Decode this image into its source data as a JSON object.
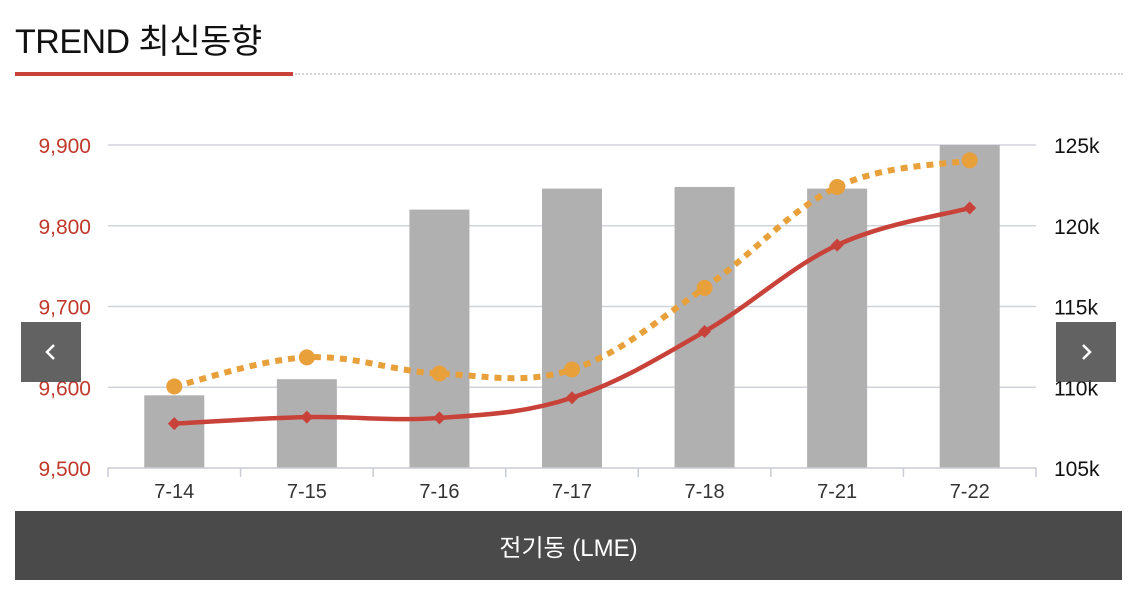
{
  "header": {
    "title": "TREND 최신동향"
  },
  "footer": {
    "label": "전기동 (LME)"
  },
  "nav": {
    "prev_icon": "chevron-left-icon",
    "next_icon": "chevron-right-icon"
  },
  "colors": {
    "accent": "#c8423a",
    "line_dotted": "#e8a03a",
    "bars": "#b0b0b0",
    "footer_bg": "#4a4a4a"
  },
  "chart_data": {
    "type": "bar",
    "categories": [
      "7-14",
      "7-15",
      "7-16",
      "7-17",
      "7-18",
      "7-21",
      "7-22"
    ],
    "series": [
      {
        "type": "bar",
        "axis": "right",
        "color": "#b0b0b0",
        "values": [
          109.5,
          110.5,
          121,
          122.3,
          122.4,
          122.3,
          125
        ]
      },
      {
        "type": "line",
        "style": "solid",
        "marker": "diamond",
        "axis": "left",
        "color": "#c8423a",
        "values": [
          9555,
          9563,
          9562,
          9587,
          9669,
          9776,
          9822
        ]
      },
      {
        "type": "line",
        "style": "dotted",
        "marker": "circle",
        "axis": "left",
        "color": "#e8a03a",
        "values": [
          9601,
          9637,
          9617,
          9622,
          9723,
          9848,
          9881
        ]
      }
    ],
    "y_left": {
      "ylim": [
        9500,
        9900
      ],
      "ticks": [
        "9,500",
        "9,600",
        "9,700",
        "9,800",
        "9,900"
      ],
      "values": [
        9500,
        9600,
        9700,
        9800,
        9900
      ]
    },
    "y_right": {
      "ylim": [
        105,
        125
      ],
      "ticks": [
        "105k",
        "110k",
        "115k",
        "120k",
        "125k"
      ],
      "values": [
        105,
        110,
        115,
        120,
        125
      ]
    },
    "grid": true
  }
}
